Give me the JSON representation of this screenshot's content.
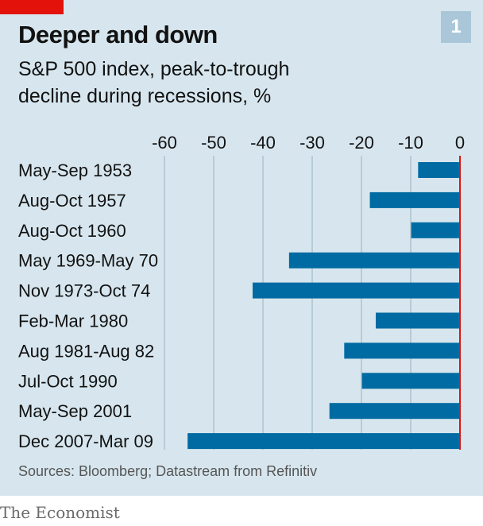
{
  "header": {
    "title": "Deeper and down",
    "subtitle": "S&P 500 index, peak-to-trough decline during recessions, %",
    "badge": "1"
  },
  "footer": {
    "source": "Sources: Bloomberg; Datastream from Refinitiv",
    "brand": "The Economist"
  },
  "colors": {
    "background": "#d7e6ee",
    "bar": "#006ba2",
    "zero_line": "#e3120b",
    "brand_tag": "#e3120b"
  },
  "chart_data": {
    "type": "bar",
    "orientation": "horizontal",
    "title": "Deeper and down",
    "subtitle": "S&P 500 index, peak-to-trough decline during recessions, %",
    "categories": [
      "May-Sep 1953",
      "Aug-Oct 1957",
      "Aug-Oct 1960",
      "May 1969-May 70",
      "Nov 1973-Oct 74",
      "Feb-Mar 1980",
      "Aug 1981-Aug 82",
      "Jul-Oct 1990",
      "May-Sep 2001",
      "Dec 2007-Mar 09"
    ],
    "values": [
      -8.5,
      -18.3,
      -9.9,
      -34.7,
      -42.1,
      -17.1,
      -23.5,
      -19.9,
      -26.5,
      -55.3
    ],
    "xlim": [
      -60,
      0
    ],
    "xticks": [
      -60,
      -50,
      -40,
      -30,
      -20,
      -10,
      0
    ],
    "tick_labels": [
      "-60",
      "-50",
      "-40",
      "-30",
      "-20",
      "-10",
      "0"
    ],
    "axis_position": "top",
    "grid": true
  }
}
